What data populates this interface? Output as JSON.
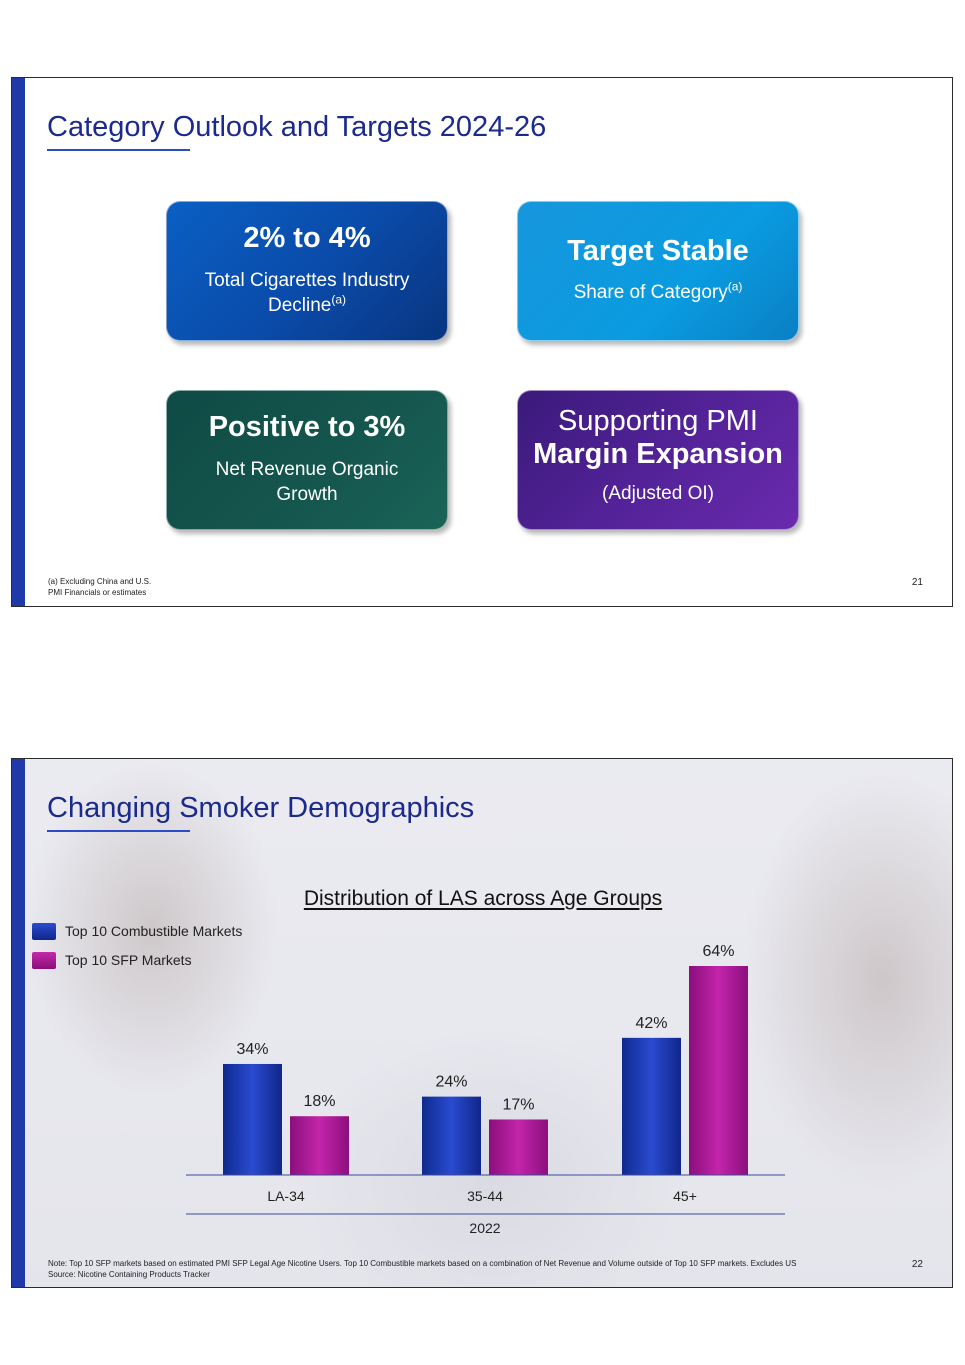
{
  "slide1": {
    "title": "Category Outlook and Targets 2024-26",
    "cards": [
      {
        "headline": "2% to 4%",
        "line1": "Total Cigarettes Industry",
        "line2": "Decline",
        "superscript": "(a)"
      },
      {
        "headline": "Target Stable",
        "line1": "Share of Category",
        "superscript": "(a)"
      },
      {
        "headline": "Positive to 3%",
        "line1": "Net Revenue Organic",
        "line2": "Growth"
      },
      {
        "line0": "Supporting PMI",
        "headline": "Margin Expansion",
        "line1": "(Adjusted OI)"
      }
    ],
    "footnote_line1": "(a) Excluding China and U.S.",
    "footnote_line2": "PMI Financials or estimates",
    "page_number": "21",
    "colors": {
      "title": "#1b2a8c",
      "accent_bar": "#1f3aa8"
    }
  },
  "slide2": {
    "title": "Changing Smoker Demographics",
    "note_line1": "Note: Top 10 SFP markets based on estimated PMI SFP Legal Age Nicotine Users. Top 10 Combustible markets based on a combination of Net Revenue and Volume outside of Top 10 SFP markets. Excludes US",
    "note_line2": "Source: Nicotine Containing Products Tracker",
    "page_number": "22"
  },
  "chart_data": {
    "type": "bar",
    "title": "Distribution of LAS across Age Groups",
    "categories": [
      "LA-34",
      "35-44",
      "45+"
    ],
    "group_label": "2022",
    "series": [
      {
        "name": "Top 10 Combustible Markets",
        "values": [
          34,
          24,
          42
        ],
        "labels": [
          "34%",
          "24%",
          "42%"
        ],
        "color": "#1a35a8"
      },
      {
        "name": "Top 10 SFP Markets",
        "values": [
          18,
          17,
          64
        ],
        "labels": [
          "18%",
          "17%",
          "64%"
        ],
        "color": "#a3168f"
      }
    ],
    "ylim": [
      0,
      64
    ],
    "legend": "top-left"
  }
}
